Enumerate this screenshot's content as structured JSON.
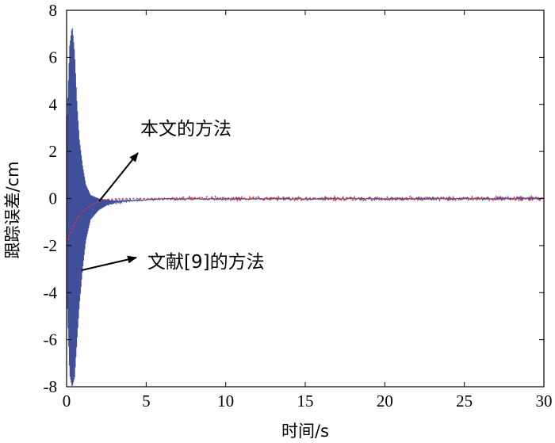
{
  "chart_data": {
    "type": "line",
    "title": "",
    "xlabel": "时间/s",
    "ylabel": "跟踪误差/cm",
    "xlim": [
      0,
      30
    ],
    "ylim": [
      -8,
      8
    ],
    "xticks": [
      0,
      5,
      10,
      15,
      20,
      25,
      30
    ],
    "yticks": [
      -8,
      -6,
      -4,
      -2,
      0,
      2,
      4,
      6,
      8
    ],
    "grid": false,
    "colors": {
      "ref9": "#3f4f9a",
      "proposed": "#e8343c"
    },
    "series": [
      {
        "name": "文献[9]的方法",
        "style": "solid",
        "x": [
          0,
          0.2,
          0.35,
          0.5,
          0.65,
          0.8,
          1.0,
          1.2,
          1.5,
          2.0,
          2.5,
          3.0,
          4.0,
          5.0,
          6.0,
          30
        ],
        "envelope_upper": [
          2.8,
          6.5,
          7.3,
          6.2,
          4.0,
          2.5,
          1.4,
          0.6,
          0.15,
          0.0,
          -0.05,
          -0.08,
          -0.06,
          -0.03,
          -0.01,
          0.03
        ],
        "envelope_lower": [
          -3.5,
          -7.5,
          -8.0,
          -7.6,
          -6.0,
          -4.5,
          -3.0,
          -1.8,
          -0.9,
          -0.5,
          -0.3,
          -0.2,
          -0.12,
          -0.06,
          -0.03,
          -0.03
        ]
      },
      {
        "name": "本文的方法",
        "style": "dotted",
        "x": [
          0,
          0.3,
          0.6,
          1.0,
          1.5,
          2.0,
          2.5,
          3.0,
          4.0,
          5.0,
          6.0,
          30
        ],
        "y": [
          -1.9,
          -1.4,
          -0.9,
          -0.55,
          -0.3,
          -0.12,
          -0.04,
          -0.02,
          0.0,
          0.0,
          0.0,
          0.0
        ],
        "noise_after": 6,
        "noise_amplitude": 0.08
      }
    ],
    "annotations": [
      {
        "text": "本文的方法",
        "arrow_to": [
          1.6,
          -0.4
        ]
      },
      {
        "text": "文献[9]的方法",
        "arrow_to": [
          0.9,
          -3.0
        ]
      }
    ]
  }
}
